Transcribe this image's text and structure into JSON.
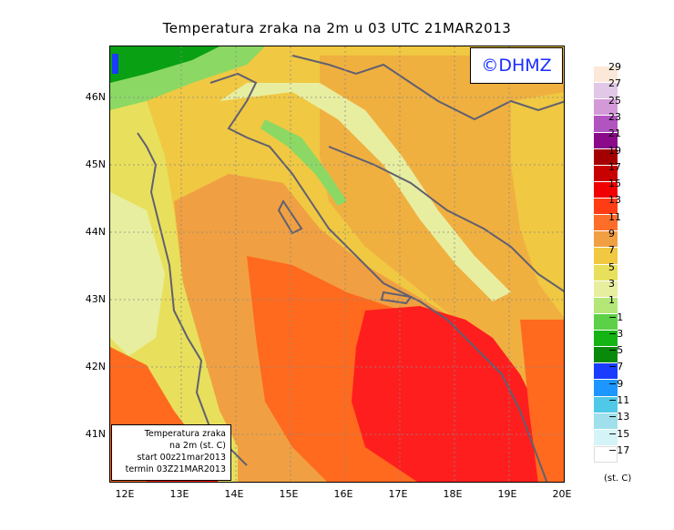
{
  "title": "Temperatura zraka na 2m u 03 UTC 21MAR2013",
  "logo": "©DHMZ",
  "info": {
    "line1": "Temperatura zraka",
    "line2": "na 2m (st. C)",
    "line3": "start 00z21mar2013",
    "line4": "termin 03Z21MAR2013"
  },
  "lat_labels": [
    "46N",
    "45N",
    "44N",
    "43N",
    "42N",
    "41N"
  ],
  "lon_labels": [
    "12E",
    "13E",
    "14E",
    "15E",
    "16E",
    "17E",
    "18E",
    "19E",
    "20E"
  ],
  "legend": {
    "unit": "(st. C)",
    "labels": [
      "29",
      "27",
      "25",
      "23",
      "21",
      "19",
      "17",
      "15",
      "13",
      "11",
      "9",
      "7",
      "5",
      "3",
      "1",
      "−1",
      "−3",
      "−5",
      "−7",
      "−9",
      "−11",
      "−13",
      "−15",
      "−17"
    ],
    "colors": [
      "#fce8d8",
      "#e0c8e6",
      "#d49ad8",
      "#b254c0",
      "#8a0a8a",
      "#a50000",
      "#c80000",
      "#f00000",
      "#ff3c14",
      "#ff6e28",
      "#f0a042",
      "#f0c842",
      "#e8e05c",
      "#e8eea0",
      "#b4e678",
      "#5cd046",
      "#14b414",
      "#0a8a0a",
      "#1a3cff",
      "#1e96ff",
      "#50c8e8",
      "#a0e0ec",
      "#d4f4f8",
      "#ffffff"
    ]
  },
  "map_colors": {
    "sea_hot": "#ff1e1e",
    "orange_dark": "#ff6a1e",
    "orange": "#f0a042",
    "yellow_orange": "#f0c842",
    "yellow": "#e8e05c",
    "pale": "#e8eea0",
    "green": "#8cd864",
    "green_dark": "#0aa014",
    "blue": "#1a3cff",
    "coast": "#606070"
  }
}
